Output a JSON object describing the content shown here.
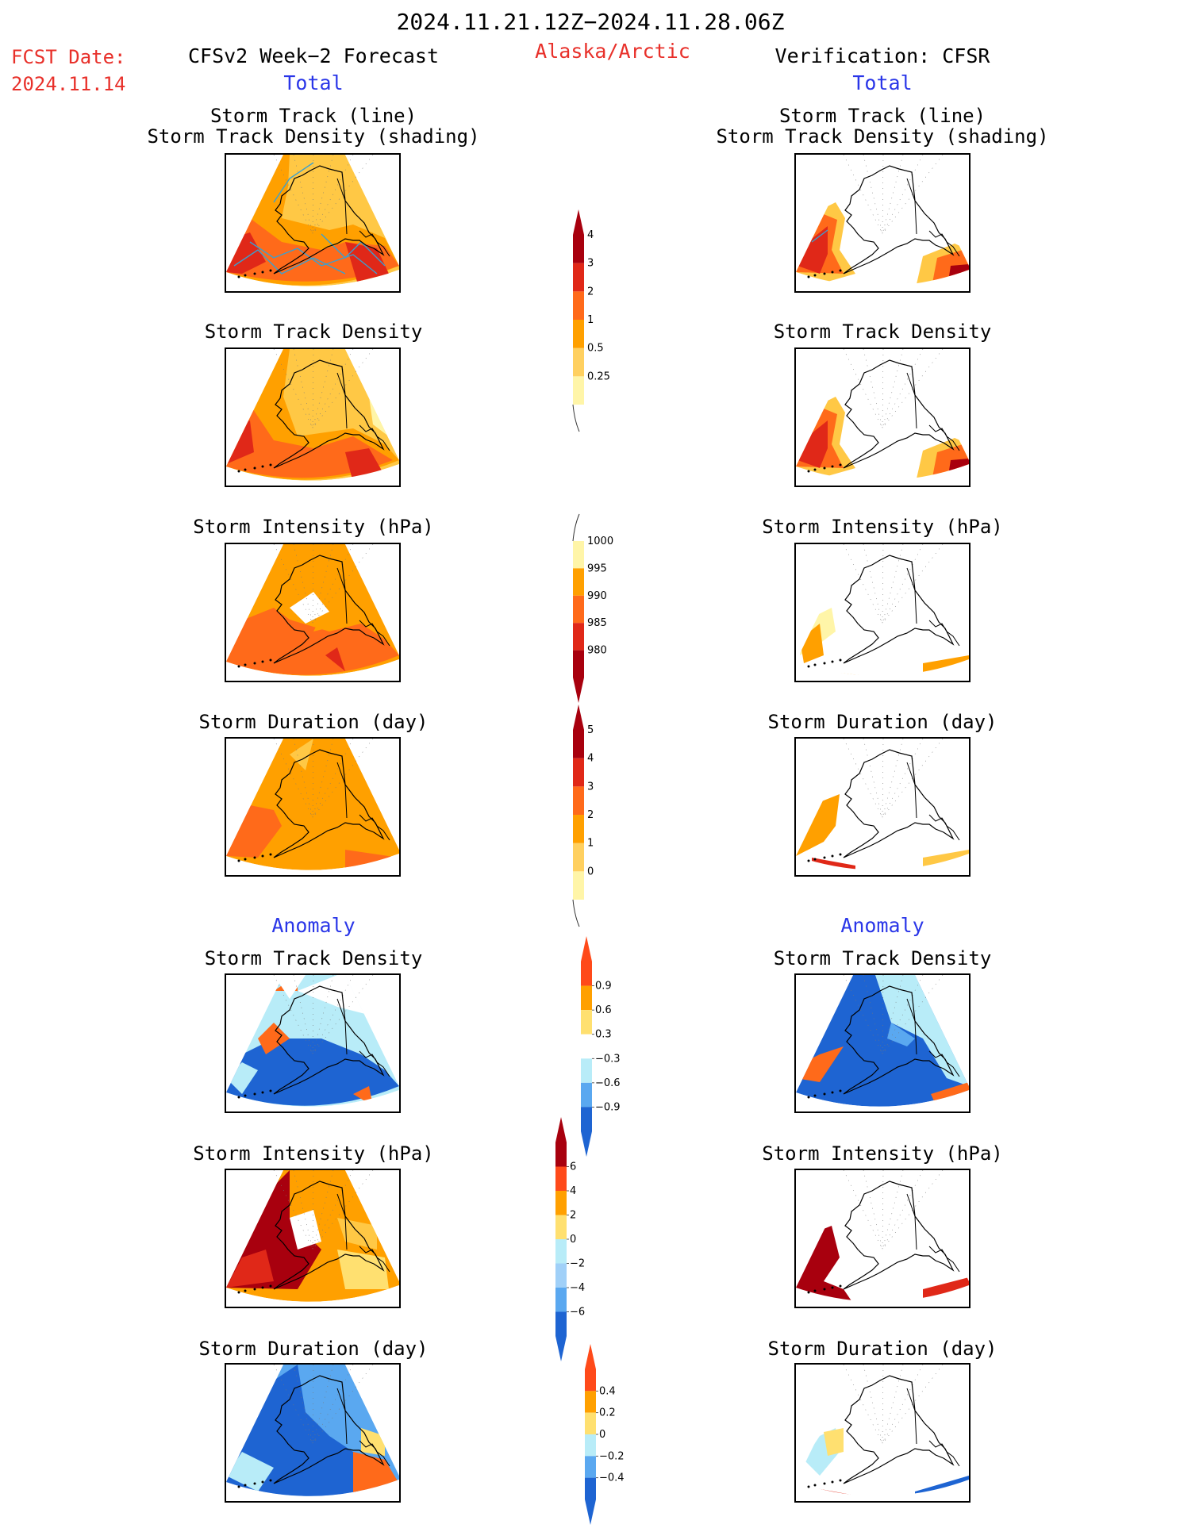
{
  "header": {
    "date_range": "2024.11.21.12Z−2024.11.28.06Z",
    "fcst_label": "FCST Date:",
    "fcst_date": "2024.11.14",
    "left_title": "CFSv2 Week−2 Forecast",
    "region": "Alaska/Arctic",
    "right_title": "Verification: CFSR"
  },
  "sections": {
    "total": "Total",
    "anomaly": "Anomaly"
  },
  "panel_titles": {
    "track_line": "Storm Track (line)",
    "track_shading": "Storm Track Density (shading)",
    "density": "Storm Track Density",
    "intensity": "Storm Intensity (hPa)",
    "duration": "Storm Duration (day)"
  },
  "colors": {
    "red_text": "#e8302a",
    "blue_text": "#2a36e8",
    "pale_yellow": "#fff5a8",
    "light_orange": "#ffc845",
    "orange": "#ffa000",
    "dark_orange": "#ff6a1a",
    "red": "#e02818",
    "dark_red": "#a8000e",
    "light_blue": "#b8ecf8",
    "mid_blue": "#5aa8f0",
    "blue": "#1e64d2",
    "track_line": "#3aa0d0"
  },
  "chart_data": [
    {
      "type": "heatmap",
      "name": "colorbar-total-density",
      "levels": [
        "0.25",
        "0.5",
        "1",
        "2",
        "3",
        "4"
      ],
      "colors": [
        "#fff5a8",
        "#ffd060",
        "#ffa000",
        "#ff6a1a",
        "#e02818",
        "#a8000e"
      ]
    },
    {
      "type": "heatmap",
      "name": "colorbar-total-intensity",
      "levels": [
        "1000",
        "995",
        "990",
        "985",
        "980"
      ],
      "colors": [
        "#fff5a8",
        "#ffa000",
        "#ff6a1a",
        "#e02818",
        "#a8000e"
      ]
    },
    {
      "type": "heatmap",
      "name": "colorbar-total-duration",
      "levels": [
        "0",
        "1",
        "2",
        "3",
        "4",
        "5"
      ],
      "colors": [
        "#fff5a8",
        "#ffd060",
        "#ffa000",
        "#ff6a1a",
        "#e02818",
        "#a8000e"
      ]
    },
    {
      "type": "heatmap",
      "name": "colorbar-anom-density",
      "levels": [
        "0.9",
        "0.6",
        "0.3",
        "−0.3",
        "−0.6",
        "−0.9"
      ],
      "colors": [
        "#ff4a1a",
        "#ffa000",
        "#ffe070",
        "#ffffff",
        "#b8ecf8",
        "#5aa8f0",
        "#1e64d2"
      ]
    },
    {
      "type": "heatmap",
      "name": "colorbar-anom-intensity",
      "levels": [
        "6",
        "4",
        "2",
        "0",
        "−2",
        "−4",
        "−6"
      ],
      "colors": [
        "#a8000e",
        "#ff4a1a",
        "#ffa000",
        "#ffe070",
        "#b8ecf8",
        "#a0d0f8",
        "#5aa8f0",
        "#1e64d2"
      ]
    },
    {
      "type": "heatmap",
      "name": "colorbar-anom-duration",
      "levels": [
        "0.4",
        "0.2",
        "0",
        "−0.2",
        "−0.4"
      ],
      "colors": [
        "#ff4a1a",
        "#ffa000",
        "#ffe070",
        "#b8ecf8",
        "#5aa8f0",
        "#1e64d2"
      ]
    }
  ]
}
